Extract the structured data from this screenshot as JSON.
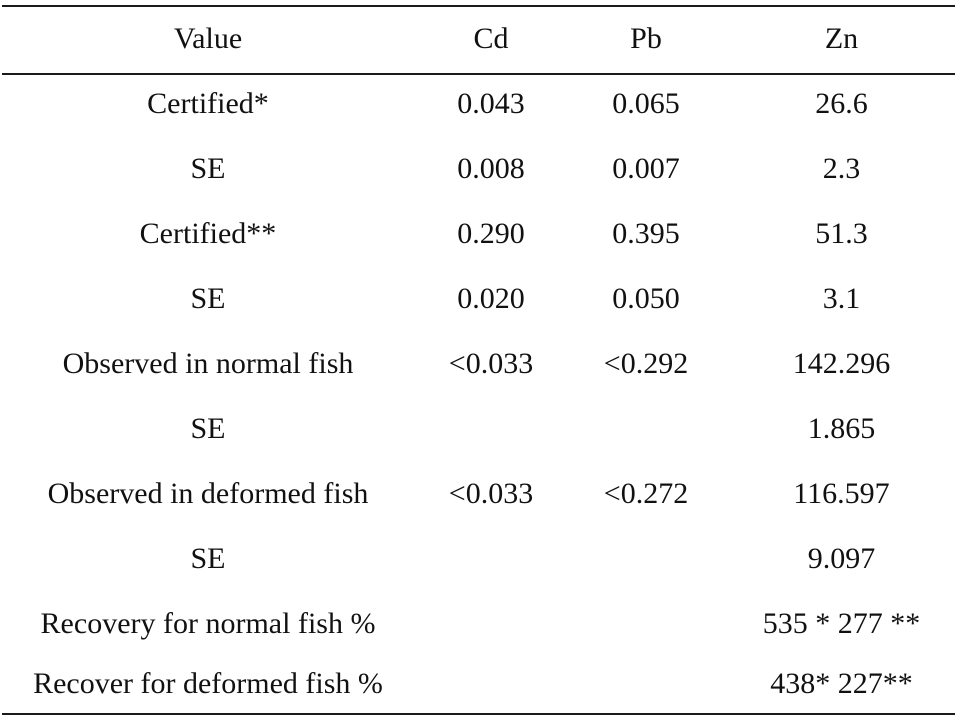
{
  "table": {
    "headers": [
      "Value",
      "Cd",
      "Pb",
      "Zn"
    ],
    "rows": [
      [
        "Certified*",
        "0.043",
        "0.065",
        "26.6"
      ],
      [
        "SE",
        "0.008",
        "0.007",
        "2.3"
      ],
      [
        "Certified**",
        "0.290",
        "0.395",
        "51.3"
      ],
      [
        "SE",
        "0.020",
        "0.050",
        "3.1"
      ],
      [
        "Observed in normal fish",
        "<0.033",
        "<0.292",
        "142.296"
      ],
      [
        "SE",
        "",
        "",
        "1.865"
      ],
      [
        "Observed in deformed fish",
        "<0.033",
        "<0.272",
        "116.597"
      ],
      [
        "SE",
        "",
        "",
        "9.097"
      ],
      [
        "Recovery for normal fish %",
        "",
        "",
        "535 * 277 **"
      ],
      [
        "Recover for deformed fish %",
        "",
        "",
        "438* 227**"
      ]
    ]
  }
}
